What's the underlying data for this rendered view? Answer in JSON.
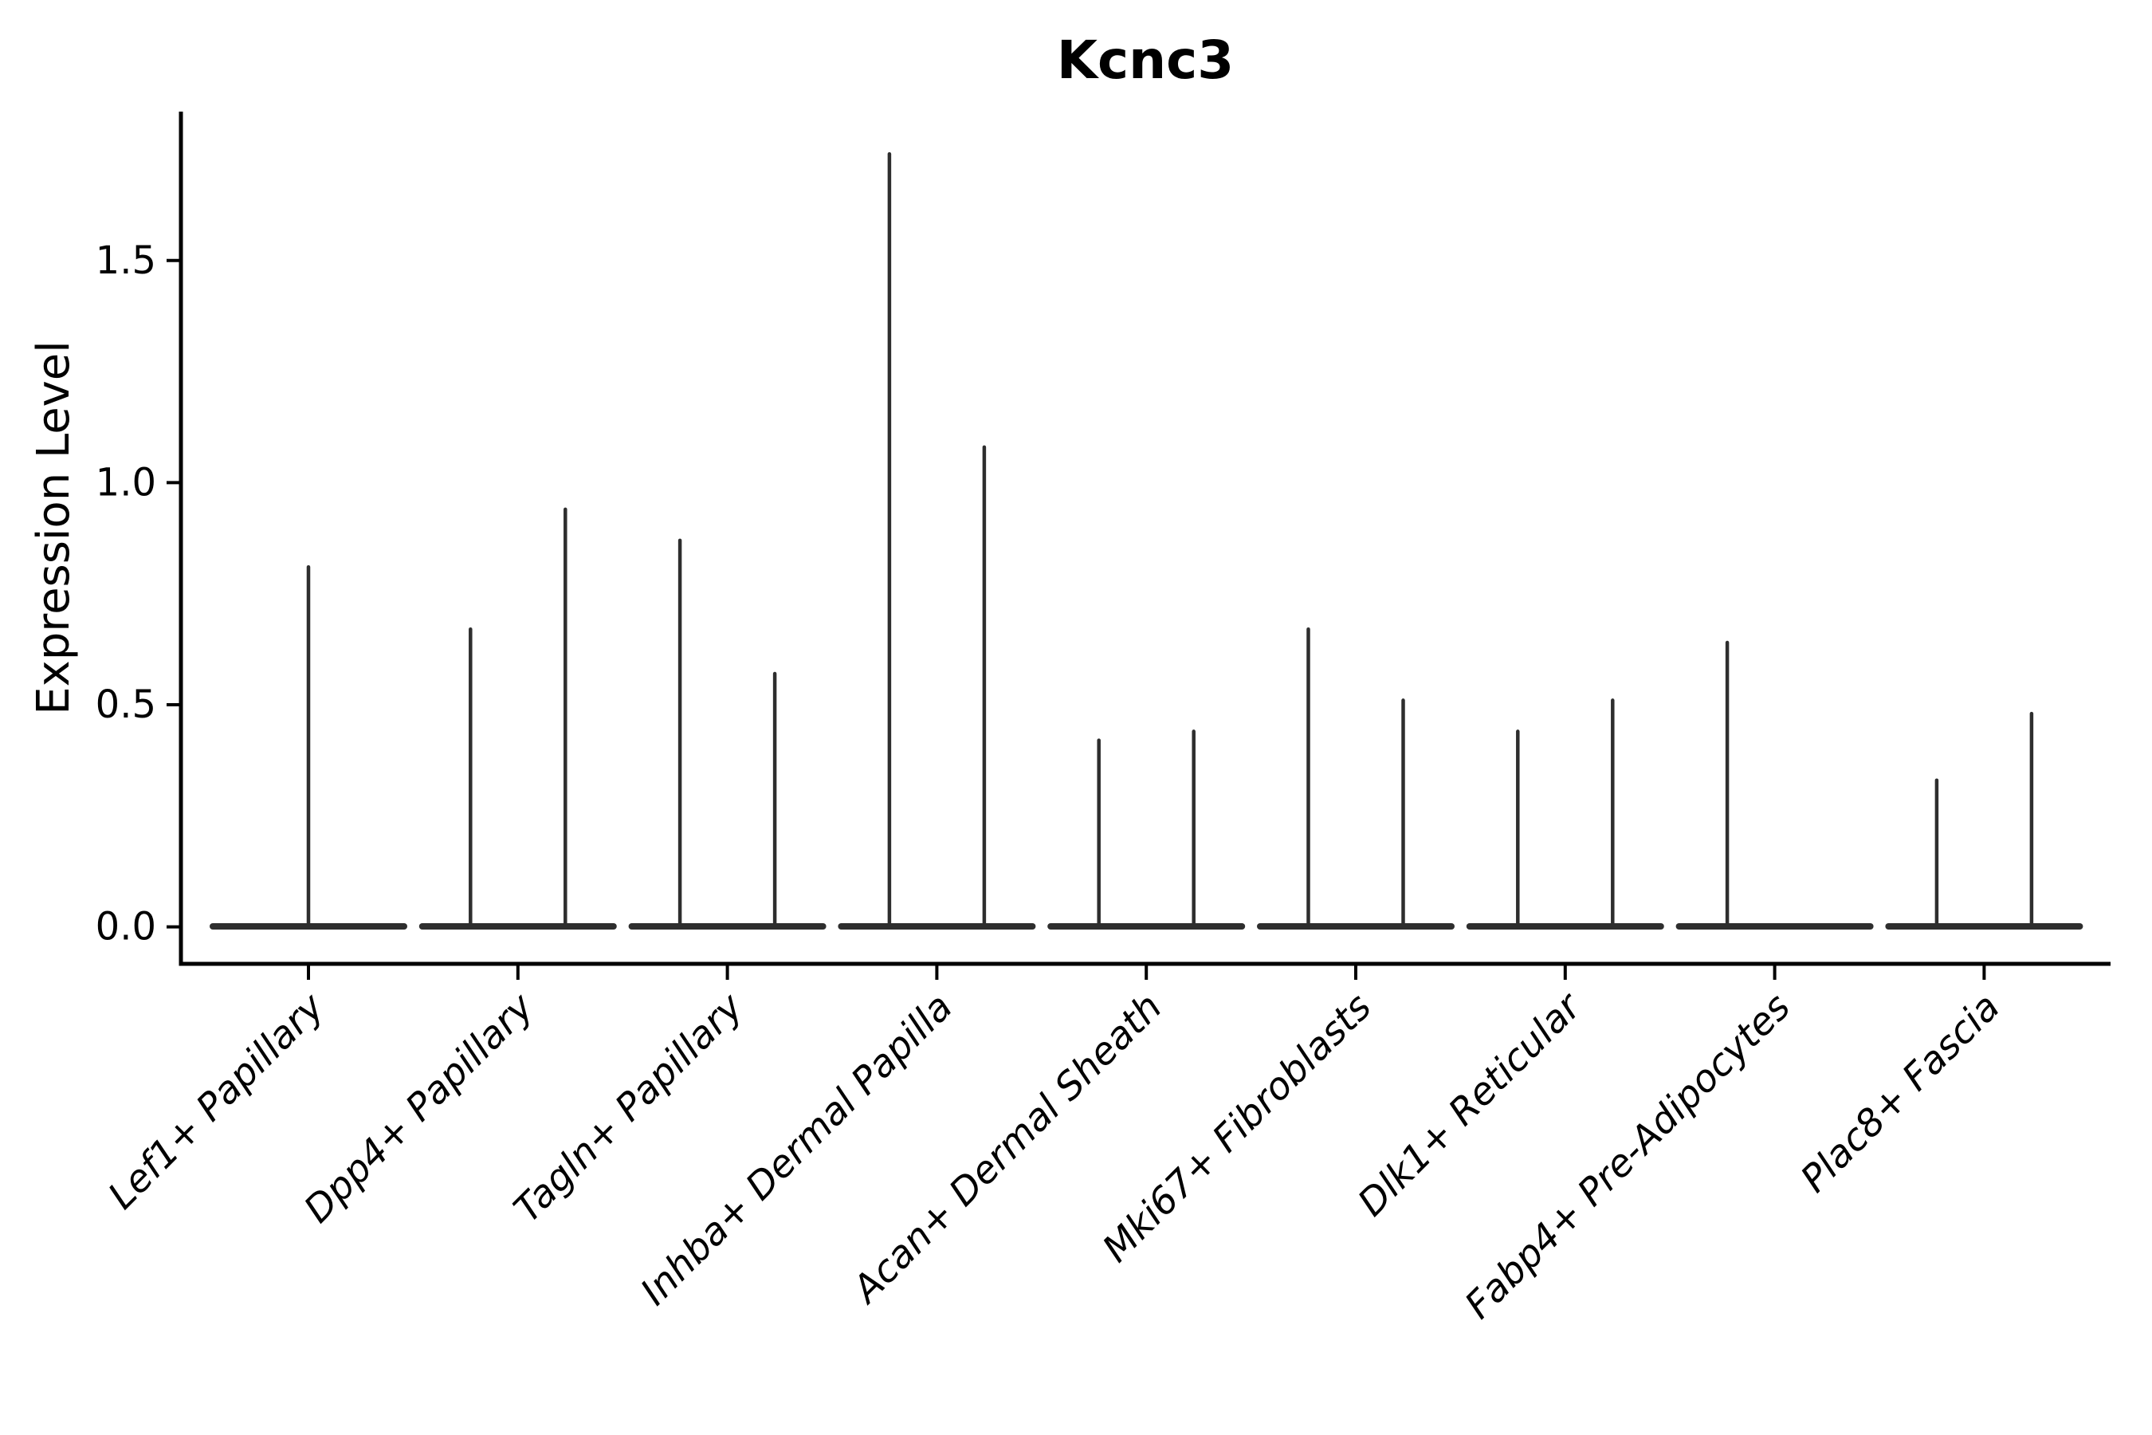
{
  "title": "Kcnc3",
  "chart_data": {
    "type": "violin",
    "title": "Kcnc3",
    "xlabel": "",
    "ylabel": "Expression Level",
    "ylim": [
      0,
      1.83
    ],
    "yticks": [
      0.0,
      0.5,
      1.0,
      1.5
    ],
    "ytick_labels": [
      "0.0",
      "0.5",
      "1.0",
      "1.5"
    ],
    "grid": false,
    "legend": "none",
    "x_tick_label_style": "italic, rotated 45 deg, right-anchored",
    "categories": [
      "Lef1+ Papillary",
      "Dpp4+ Papillary",
      "Tagln+ Papillary",
      "Inhba+ Dermal Papilla",
      "Acan+ Dermal Sheath",
      "Mki67+ Fibroblasts",
      "Dlk1+ Reticular",
      "Fabp4+ Pre-Adipocytes",
      "Plac8+ Fascia"
    ],
    "series": [
      {
        "category": "Lef1+ Papillary",
        "violins": [
          {
            "position": "center",
            "max": 0.81
          }
        ]
      },
      {
        "category": "Dpp4+ Papillary",
        "violins": [
          {
            "position": "left",
            "max": 0.67
          },
          {
            "position": "right",
            "max": 0.94
          }
        ]
      },
      {
        "category": "Tagln+ Papillary",
        "violins": [
          {
            "position": "left",
            "max": 0.87
          },
          {
            "position": "right",
            "max": 0.57
          }
        ]
      },
      {
        "category": "Inhba+ Dermal Papilla",
        "violins": [
          {
            "position": "left",
            "max": 1.74
          },
          {
            "position": "right",
            "max": 1.08
          }
        ]
      },
      {
        "category": "Acan+ Dermal Sheath",
        "violins": [
          {
            "position": "left",
            "max": 0.42
          },
          {
            "position": "right",
            "max": 0.44
          }
        ]
      },
      {
        "category": "Mki67+ Fibroblasts",
        "violins": [
          {
            "position": "left",
            "max": 0.67
          },
          {
            "position": "right",
            "max": 0.51
          }
        ]
      },
      {
        "category": "Dlk1+ Reticular",
        "violins": [
          {
            "position": "left",
            "max": 0.44
          },
          {
            "position": "right",
            "max": 0.51
          }
        ]
      },
      {
        "category": "Fabp4+ Pre-Adipocytes",
        "violins": [
          {
            "position": "left",
            "max": 0.64
          },
          {
            "position": "right",
            "max": 0.0
          }
        ]
      },
      {
        "category": "Plac8+ Fascia",
        "violins": [
          {
            "position": "left",
            "max": 0.33
          },
          {
            "position": "right",
            "max": 0.48
          }
        ]
      }
    ],
    "style": {
      "violin_color": "#2e2e2e",
      "axis_color": "#000000",
      "background": "#ffffff"
    }
  }
}
